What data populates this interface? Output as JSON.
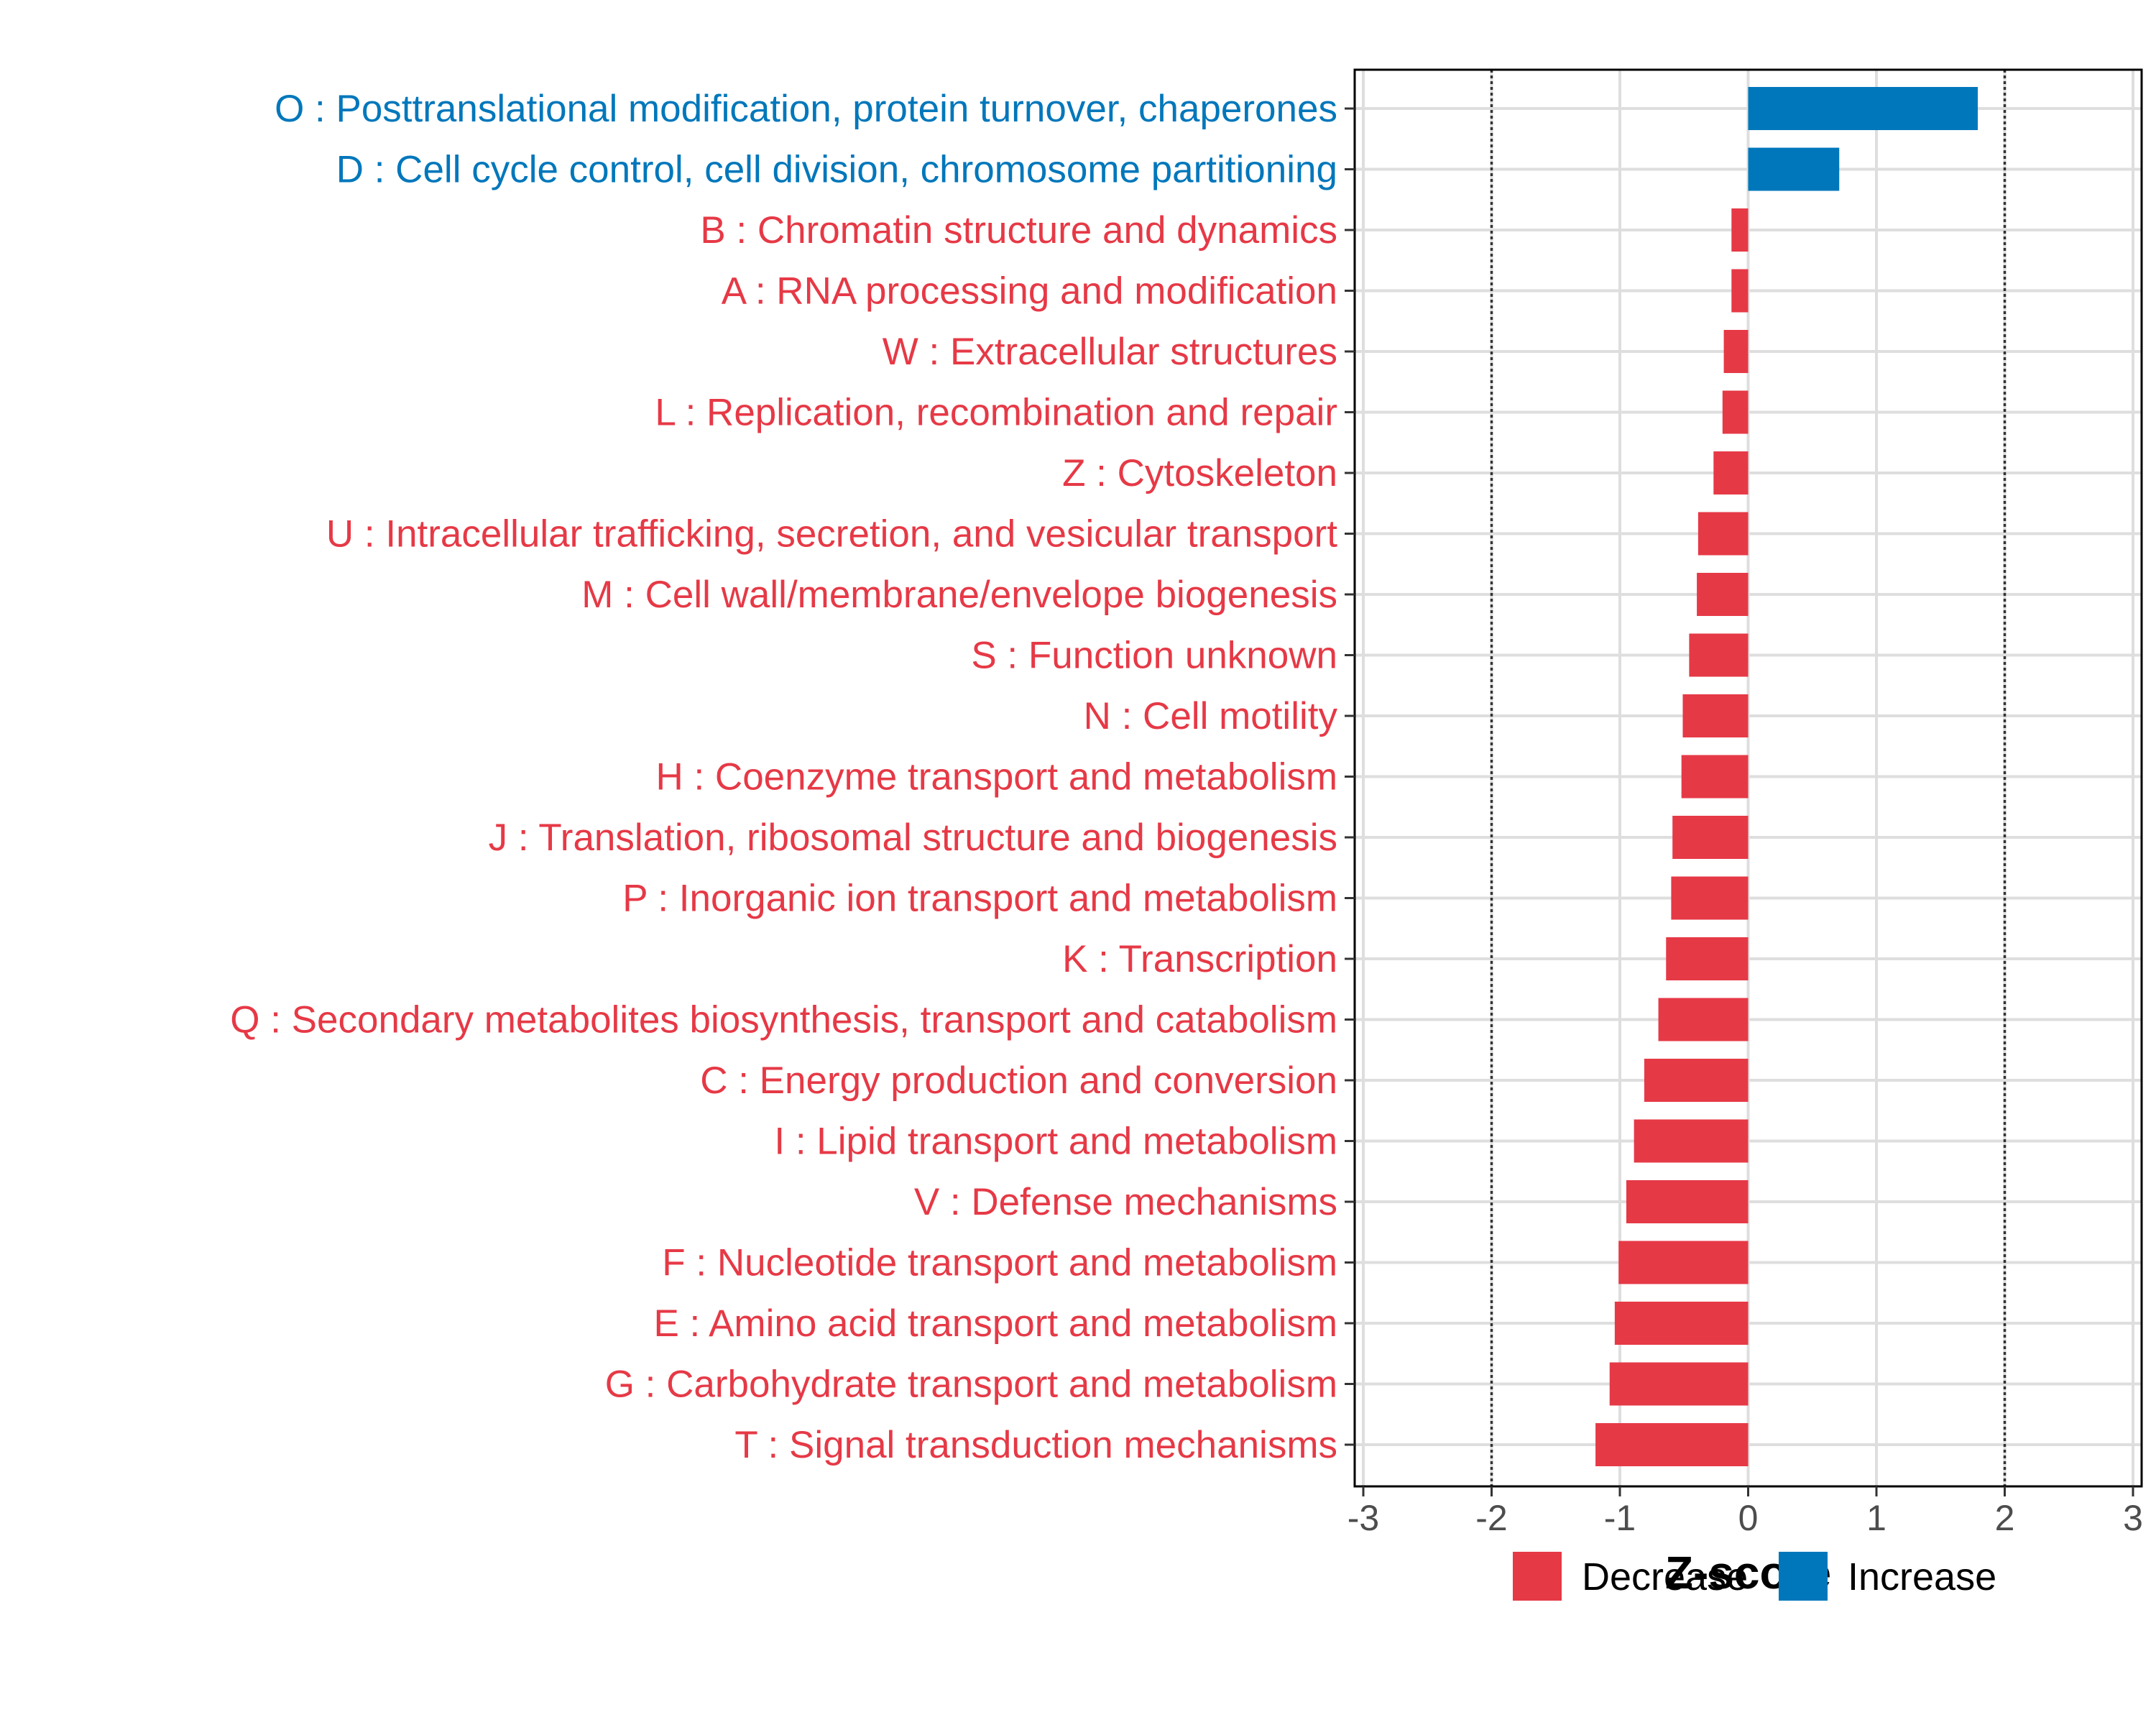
{
  "chart_data": {
    "type": "bar",
    "orientation": "horizontal",
    "title": "",
    "xlabel": "Z-score",
    "ylabel": "",
    "xlim": [
      -3,
      3
    ],
    "xticks": [
      -3,
      -2,
      -1,
      0,
      1,
      2,
      3
    ],
    "xtick_labels": [
      "-3",
      "-2",
      "-1",
      "0",
      "1",
      "2",
      "3"
    ],
    "reference_lines": [
      -2,
      2
    ],
    "grid": true,
    "categories": [
      "O : Posttranslational modification, protein turnover, chaperones",
      "D : Cell cycle control, cell division, chromosome partitioning",
      "B : Chromatin structure and dynamics",
      "A : RNA processing and modification",
      "W : Extracellular structures",
      "L : Replication, recombination and repair",
      "Z : Cytoskeleton",
      "U : Intracellular trafficking, secretion, and vesicular transport",
      "M : Cell wall/membrane/envelope biogenesis",
      "S : Function unknown",
      "N : Cell motility",
      "H : Coenzyme transport and metabolism",
      "J : Translation, ribosomal structure and biogenesis",
      "P : Inorganic ion transport and metabolism",
      "K : Transcription",
      "Q : Secondary metabolites biosynthesis, transport and catabolism",
      "C : Energy production and conversion",
      "I : Lipid transport and metabolism",
      "V : Defense mechanisms",
      "F : Nucleotide transport and metabolism",
      "E : Amino acid transport and metabolism",
      "G : Carbohydrate transport and metabolism",
      "T : Signal transduction mechanisms"
    ],
    "values": [
      1.79,
      0.71,
      -0.13,
      -0.13,
      -0.19,
      -0.2,
      -0.27,
      -0.39,
      -0.4,
      -0.46,
      -0.51,
      -0.52,
      -0.59,
      -0.6,
      -0.64,
      -0.7,
      -0.81,
      -0.89,
      -0.95,
      -1.01,
      -1.04,
      -1.08,
      -1.19
    ],
    "groups": [
      "Increase",
      "Increase",
      "Decrease",
      "Decrease",
      "Decrease",
      "Decrease",
      "Decrease",
      "Decrease",
      "Decrease",
      "Decrease",
      "Decrease",
      "Decrease",
      "Decrease",
      "Decrease",
      "Decrease",
      "Decrease",
      "Decrease",
      "Decrease",
      "Decrease",
      "Decrease",
      "Decrease",
      "Decrease",
      "Decrease"
    ],
    "legend": {
      "position": "bottom",
      "entries": [
        {
          "label": "Decrease",
          "color": "#E63946"
        },
        {
          "label": "Increase",
          "color": "#0077BB"
        }
      ]
    },
    "colors": {
      "Decrease": "#E63946",
      "Increase": "#0077BB"
    }
  }
}
